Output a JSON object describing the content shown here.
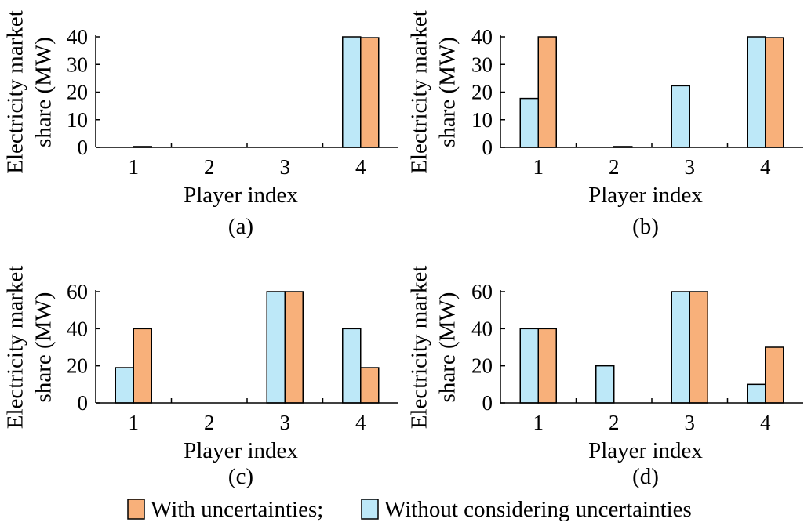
{
  "chart_data": [
    {
      "type": "bar",
      "panel_label": "(a)",
      "categories": [
        "1",
        "2",
        "3",
        "4"
      ],
      "xlabel": "Player index",
      "ylabel_lines": [
        "Electricity market",
        "share (MW)"
      ],
      "ylim": [
        0,
        40
      ],
      "yticks": [
        0,
        10,
        20,
        30,
        40
      ],
      "series": [
        {
          "key": "without",
          "values": [
            0,
            0,
            0,
            40
          ]
        },
        {
          "key": "with",
          "values": [
            0.3,
            0,
            0,
            39.7
          ]
        }
      ]
    },
    {
      "type": "bar",
      "panel_label": "(b)",
      "categories": [
        "1",
        "2",
        "3",
        "4"
      ],
      "xlabel": "Player index",
      "ylabel_lines": [
        "Electricity market",
        "share (MW)"
      ],
      "ylim": [
        0,
        40
      ],
      "yticks": [
        0,
        10,
        20,
        30,
        40
      ],
      "series": [
        {
          "key": "without",
          "values": [
            17.7,
            0,
            22.3,
            40
          ]
        },
        {
          "key": "with",
          "values": [
            40,
            0.3,
            0,
            39.7
          ]
        }
      ]
    },
    {
      "type": "bar",
      "panel_label": "(c)",
      "categories": [
        "1",
        "2",
        "3",
        "4"
      ],
      "xlabel": "Player index",
      "ylabel_lines": [
        "Electricity market",
        "share (MW)"
      ],
      "ylim": [
        0,
        60
      ],
      "yticks": [
        0,
        20,
        40,
        60
      ],
      "series": [
        {
          "key": "without",
          "values": [
            19,
            0,
            60,
            40
          ]
        },
        {
          "key": "with",
          "values": [
            40,
            0,
            60,
            19
          ]
        }
      ]
    },
    {
      "type": "bar",
      "panel_label": "(d)",
      "categories": [
        "1",
        "2",
        "3",
        "4"
      ],
      "xlabel": "Player index",
      "ylabel_lines": [
        "Electricity market",
        "share (MW)"
      ],
      "ylim": [
        0,
        60
      ],
      "yticks": [
        0,
        20,
        40,
        60
      ],
      "series": [
        {
          "key": "without",
          "values": [
            40,
            20,
            60,
            10
          ]
        },
        {
          "key": "with",
          "values": [
            40,
            0,
            60,
            30
          ]
        }
      ]
    }
  ],
  "legend": {
    "items": [
      {
        "key": "with",
        "label": "With uncertainties;"
      },
      {
        "key": "without",
        "label": "Without considering uncertainties"
      }
    ]
  },
  "colors": {
    "with": "#f8b07a",
    "without": "#bde8f8",
    "stroke": "#000000"
  }
}
